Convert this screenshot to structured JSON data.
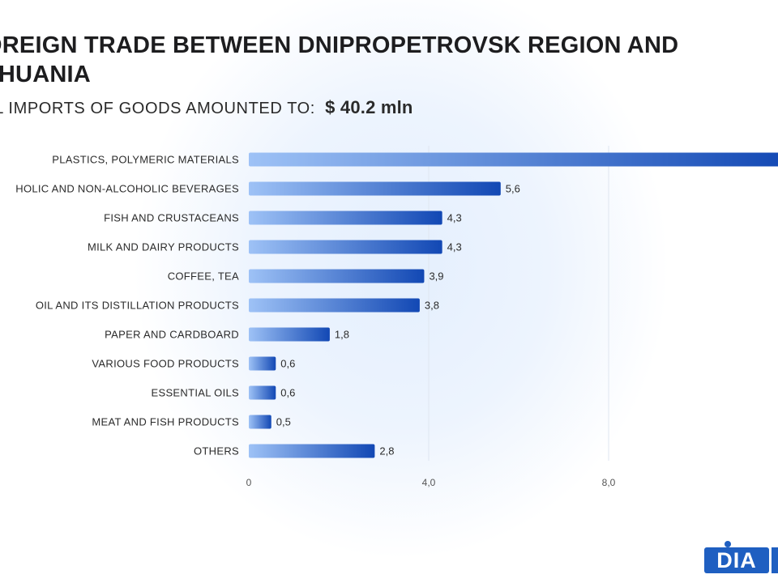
{
  "header": {
    "title": "OREIGN TRADE BETWEEN DNIPROPETROVSK REGION AND THUANIA",
    "subtitle_label": "TAL IMPORTS OF GOODS AMOUNTED TO:",
    "subtitle_value": "$ 40.2  mln"
  },
  "logo": {
    "text": "DIA"
  },
  "colors": {
    "bar_start": "#9ec2f6",
    "bar_end": "#1248b4",
    "accent": "#1f5fc1"
  },
  "chart_data": {
    "type": "bar",
    "orientation": "horizontal",
    "title": "",
    "xlabel": "",
    "ylabel": "",
    "categories": [
      "PLASTICS, POLYMERIC MATERIALS",
      "HOLIC AND NON-ALCOHOLIC BEVERAGES",
      "FISH AND CRUSTACEANS",
      "MILK AND DAIRY PRODUCTS",
      "COFFEE, TEA",
      "OIL AND ITS DISTILLATION PRODUCTS",
      "PAPER AND CARDBOARD",
      "VARIOUS FOOD PRODUCTS",
      "ESSENTIAL OILS",
      "MEAT AND FISH PRODUCTS",
      "OTHERS"
    ],
    "values": [
      12.0,
      5.6,
      4.3,
      4.3,
      3.9,
      3.8,
      1.8,
      0.6,
      0.6,
      0.5,
      2.8
    ],
    "value_labels": [
      "",
      "5,6",
      "4,3",
      "4,3",
      "3,9",
      "3,8",
      "1,8",
      "0,6",
      "0,6",
      "0,5",
      "2,8"
    ],
    "xticks": [
      0,
      4,
      8
    ],
    "xtick_labels": [
      "0",
      "4,0",
      "8,0"
    ],
    "grid": true
  }
}
